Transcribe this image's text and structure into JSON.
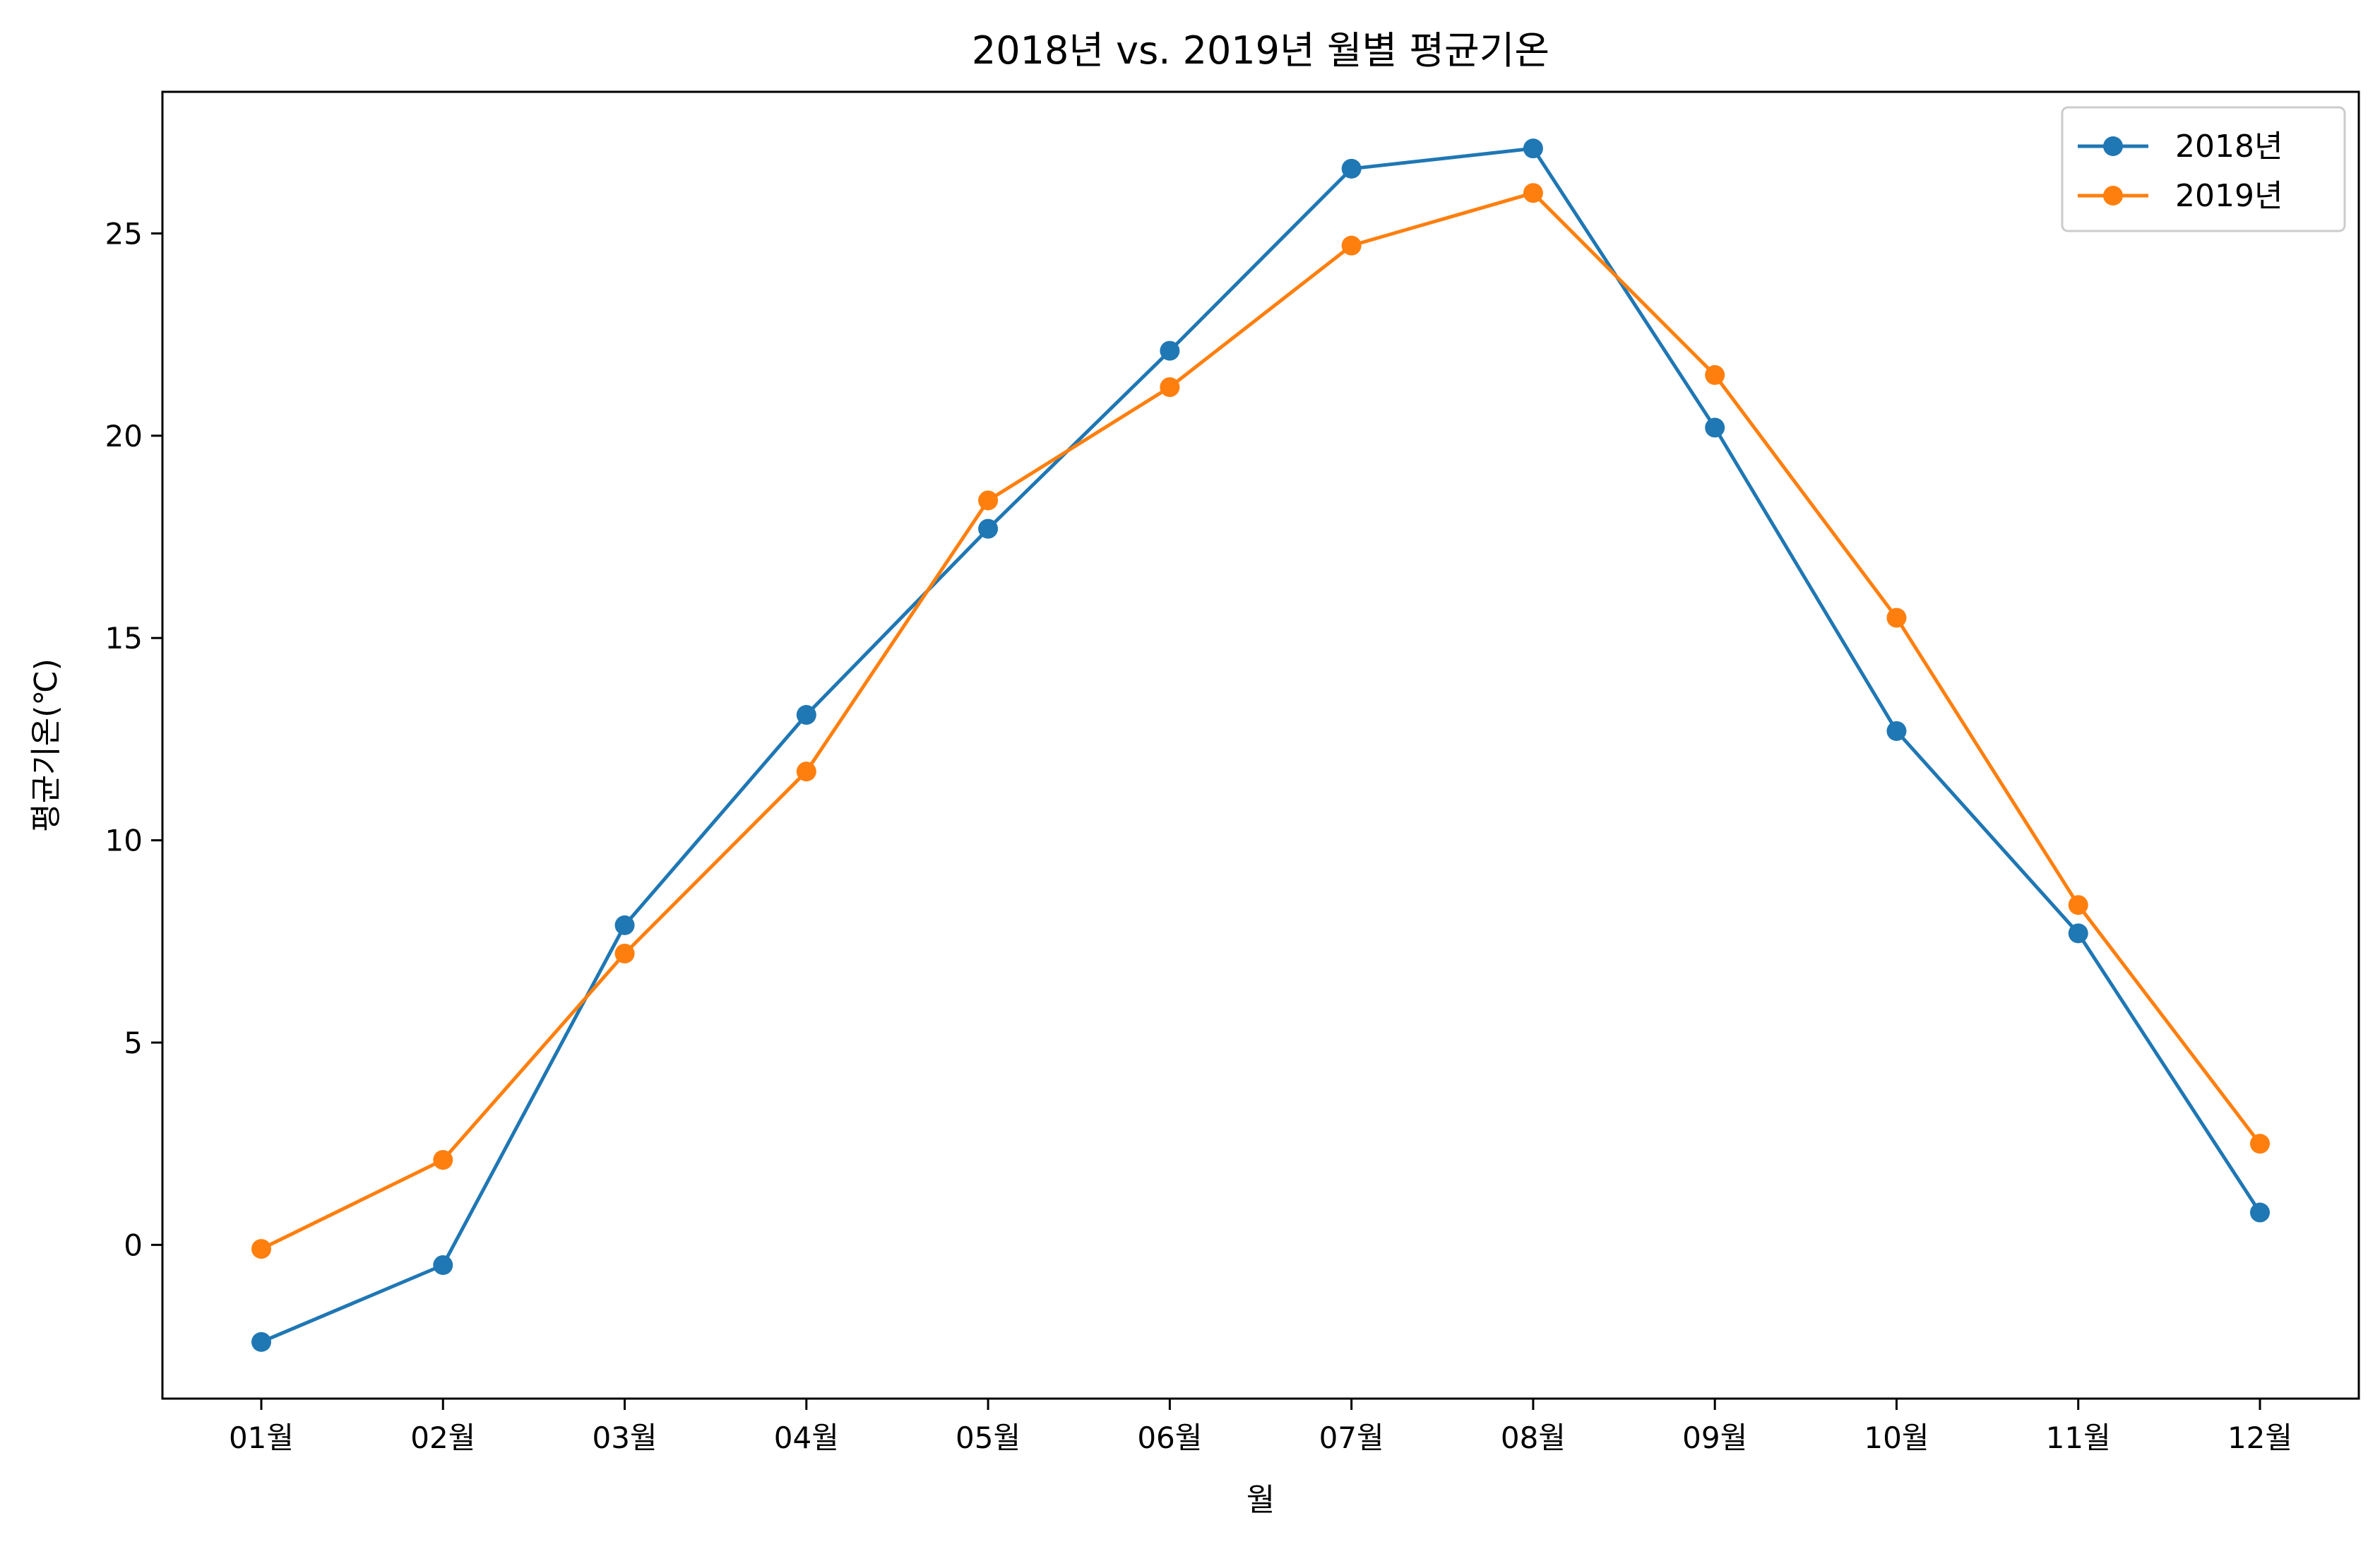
{
  "chart_data": {
    "type": "line",
    "title": "2018년 vs. 2019년 월별 평균기온",
    "xlabel": "월",
    "ylabel": "평균기온(℃)",
    "categories": [
      "01월",
      "02월",
      "03월",
      "04월",
      "05월",
      "06월",
      "07월",
      "08월",
      "09월",
      "10월",
      "11월",
      "12월"
    ],
    "ylim": [
      -3.8,
      28.5
    ],
    "yticks": [
      0,
      5,
      10,
      15,
      20,
      25
    ],
    "grid": false,
    "legend_position": "top-right",
    "series": [
      {
        "name": "2018년",
        "color": "#1f77b4",
        "values": [
          -2.4,
          -0.5,
          7.9,
          13.1,
          17.7,
          22.1,
          26.6,
          27.1,
          20.2,
          12.7,
          7.7,
          0.8
        ]
      },
      {
        "name": "2019년",
        "color": "#ff7f0e",
        "values": [
          -0.1,
          2.1,
          7.2,
          11.7,
          18.4,
          21.2,
          24.7,
          26.0,
          21.5,
          15.5,
          8.4,
          2.5
        ]
      }
    ]
  }
}
